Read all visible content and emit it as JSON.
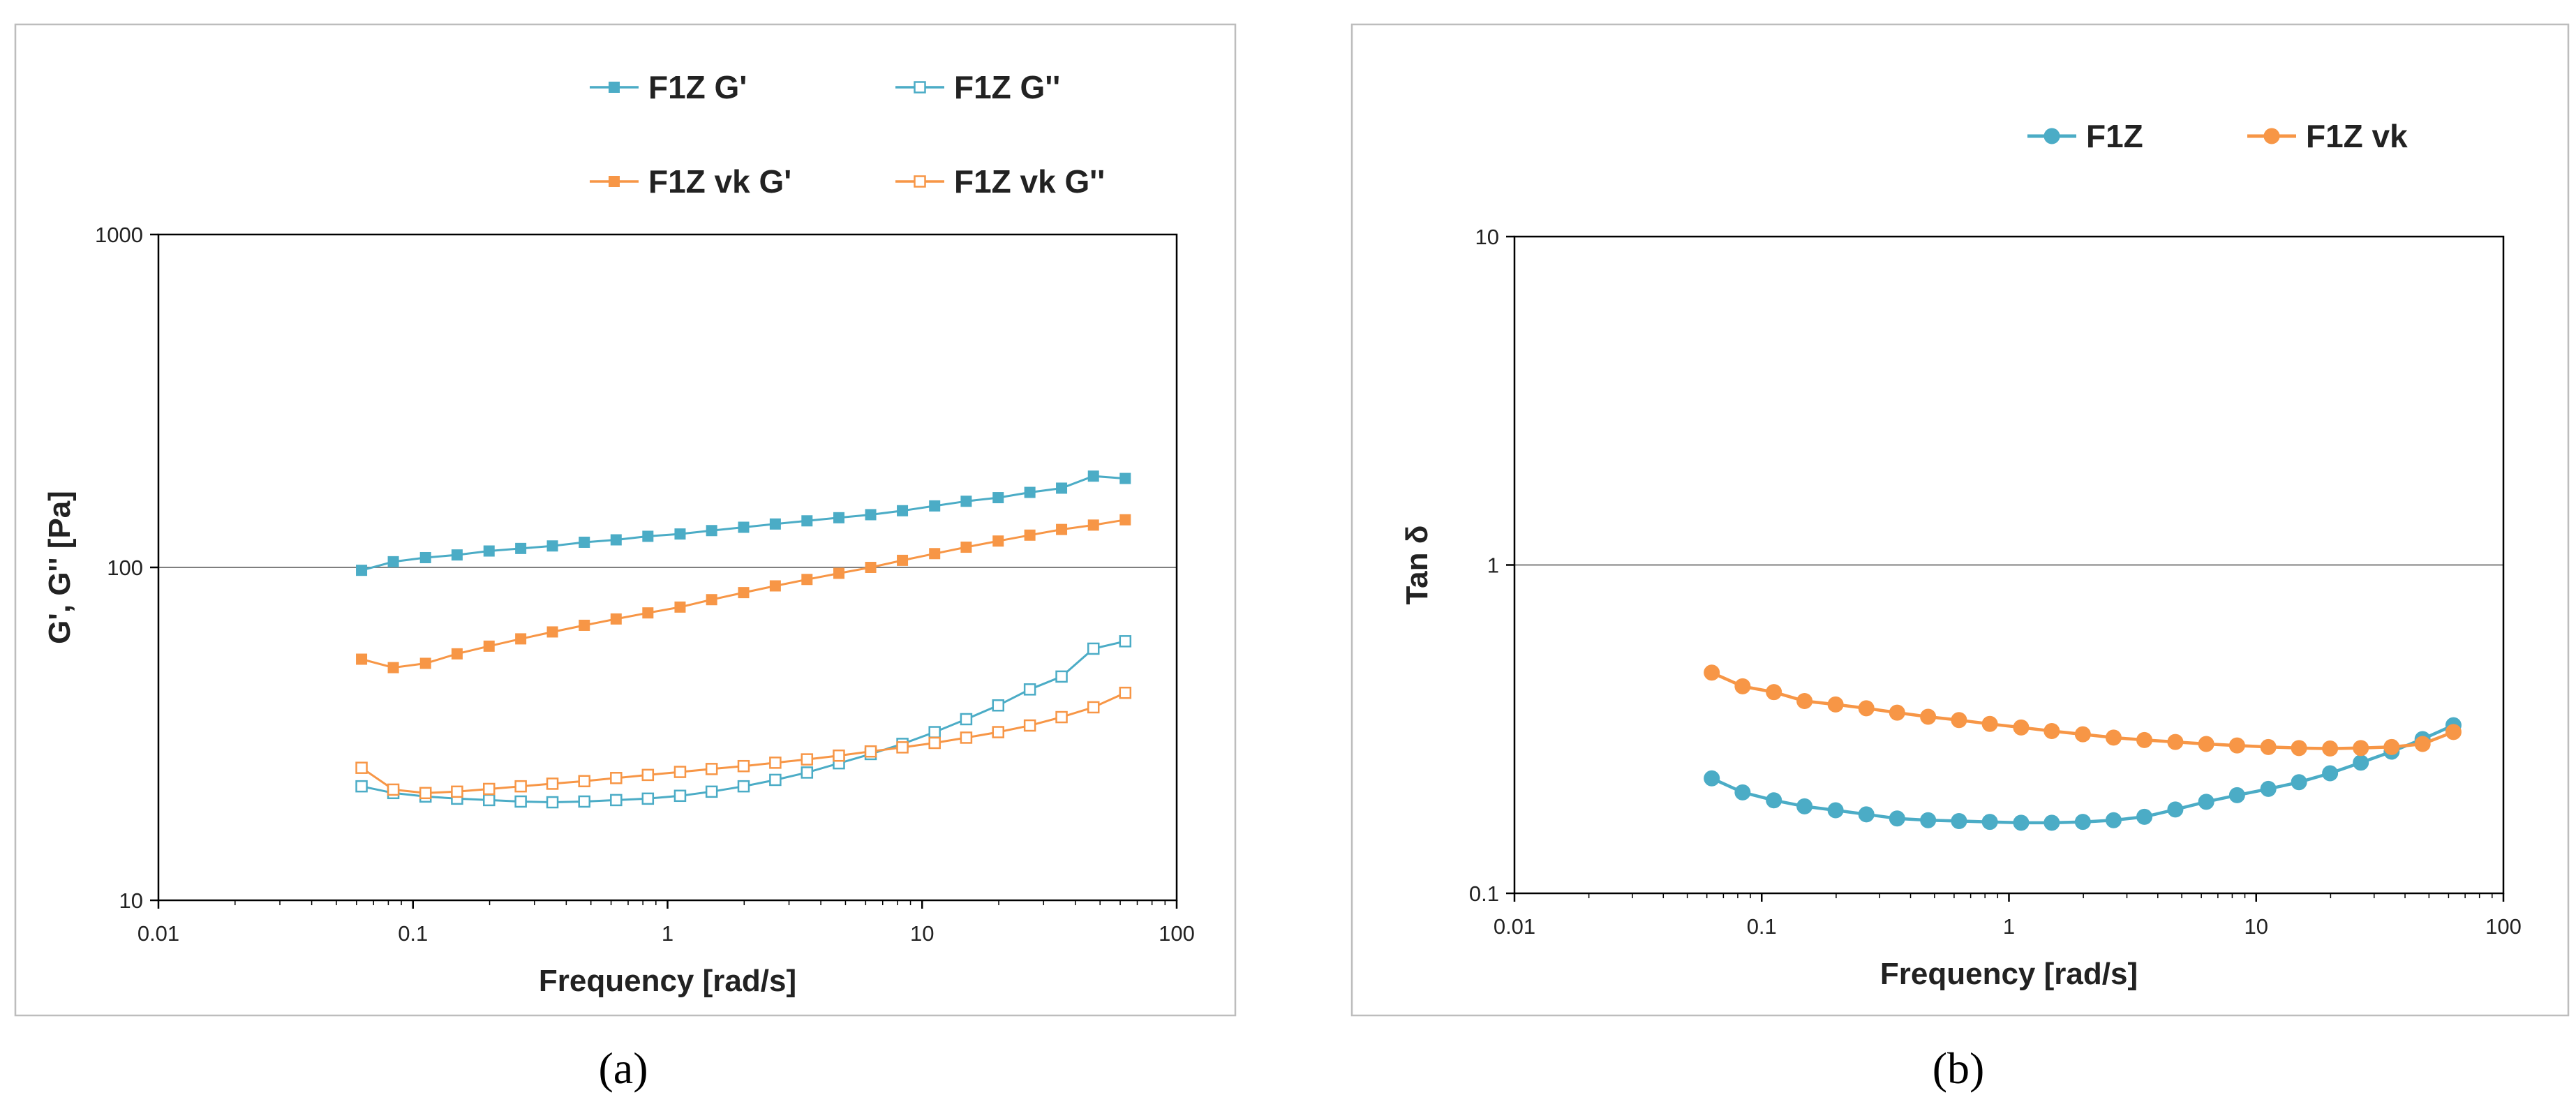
{
  "colors": {
    "blue": "#4bacc6",
    "orange": "#f79646",
    "gridline": "#7f7f7f"
  },
  "chart_data": [
    {
      "type": "line",
      "panel_label": "(a)",
      "xlabel": "Frequency [rad/s]",
      "ylabel": "G', G'' [Pa]",
      "xscale": "log",
      "yscale": "log",
      "xlim": [
        0.01,
        100
      ],
      "ylim": [
        10,
        1000
      ],
      "x_ticks": [
        0.01,
        0.1,
        1,
        10,
        100
      ],
      "x_tick_labels": [
        "0.01",
        "0.1",
        "1",
        "10",
        "100"
      ],
      "y_ticks": [
        10,
        100,
        1000
      ],
      "y_tick_labels": [
        "10",
        "100",
        "1000"
      ],
      "gridlines_y": [
        100
      ],
      "legend": "top",
      "x": [
        0.0628,
        0.0837,
        0.112,
        0.149,
        0.199,
        0.265,
        0.353,
        0.471,
        0.628,
        0.837,
        1.12,
        1.49,
        1.99,
        2.65,
        3.53,
        4.71,
        6.28,
        8.37,
        11.2,
        14.9,
        19.9,
        26.5,
        35.3,
        47.1,
        62.8
      ],
      "series": [
        {
          "name": "F1Z G'",
          "color": "blue",
          "marker": "square",
          "filled": true,
          "values": [
            98,
            104,
            107,
            109,
            112,
            114,
            116,
            119,
            121,
            124,
            126,
            129,
            132,
            135,
            138,
            141,
            144,
            148,
            153,
            158,
            162,
            168,
            173,
            188,
            185
          ]
        },
        {
          "name": "F1Z G''",
          "color": "blue",
          "marker": "square",
          "filled": false,
          "values": [
            22,
            21,
            20.5,
            20.2,
            20,
            19.8,
            19.7,
            19.8,
            20,
            20.2,
            20.6,
            21.2,
            22,
            23,
            24.2,
            25.8,
            27.5,
            29.5,
            32,
            35,
            38.5,
            43,
            47,
            57,
            60
          ]
        },
        {
          "name": "F1Z vk G'",
          "color": "orange",
          "marker": "square",
          "filled": true,
          "values": [
            53,
            50,
            51.5,
            55,
            58,
            61,
            64,
            67,
            70,
            73,
            76,
            80,
            84,
            88,
            92,
            96,
            100,
            105,
            110,
            115,
            120,
            125,
            130,
            134,
            139
          ]
        },
        {
          "name": "F1Z vk G''",
          "color": "orange",
          "marker": "square",
          "filled": false,
          "values": [
            25,
            21.5,
            21,
            21.2,
            21.6,
            22,
            22.4,
            22.8,
            23.3,
            23.8,
            24.3,
            24.8,
            25.3,
            25.9,
            26.5,
            27.2,
            28,
            28.8,
            29.7,
            30.8,
            32,
            33.5,
            35.5,
            38,
            42
          ]
        }
      ]
    },
    {
      "type": "line",
      "panel_label": "(b)",
      "xlabel": "Frequency [rad/s]",
      "ylabel": "Tan δ",
      "xscale": "log",
      "yscale": "log",
      "xlim": [
        0.01,
        100
      ],
      "ylim": [
        0.1,
        10
      ],
      "x_ticks": [
        0.01,
        0.1,
        1,
        10,
        100
      ],
      "x_tick_labels": [
        "0.01",
        "0.1",
        "1",
        "10",
        "100"
      ],
      "y_ticks": [
        0.1,
        1,
        10
      ],
      "y_tick_labels": [
        "0.1",
        "1",
        "10"
      ],
      "gridlines_y": [
        1
      ],
      "legend": "top-right",
      "x": [
        0.0628,
        0.0837,
        0.112,
        0.149,
        0.199,
        0.265,
        0.353,
        0.471,
        0.628,
        0.837,
        1.12,
        1.49,
        1.99,
        2.65,
        3.53,
        4.71,
        6.28,
        8.37,
        11.2,
        14.9,
        19.9,
        26.5,
        35.3,
        47.1,
        62.8
      ],
      "series": [
        {
          "name": "F1Z",
          "color": "blue",
          "marker": "circle",
          "filled": true,
          "values": [
            0.224,
            0.203,
            0.192,
            0.184,
            0.179,
            0.174,
            0.169,
            0.167,
            0.166,
            0.165,
            0.164,
            0.164,
            0.165,
            0.167,
            0.171,
            0.18,
            0.19,
            0.199,
            0.208,
            0.218,
            0.232,
            0.25,
            0.27,
            0.295,
            0.325
          ]
        },
        {
          "name": "F1Z vk",
          "color": "orange",
          "marker": "circle",
          "filled": true,
          "values": [
            0.47,
            0.427,
            0.41,
            0.385,
            0.376,
            0.366,
            0.355,
            0.345,
            0.337,
            0.328,
            0.32,
            0.312,
            0.305,
            0.298,
            0.293,
            0.289,
            0.285,
            0.282,
            0.279,
            0.277,
            0.276,
            0.277,
            0.279,
            0.285,
            0.31
          ]
        }
      ]
    }
  ]
}
